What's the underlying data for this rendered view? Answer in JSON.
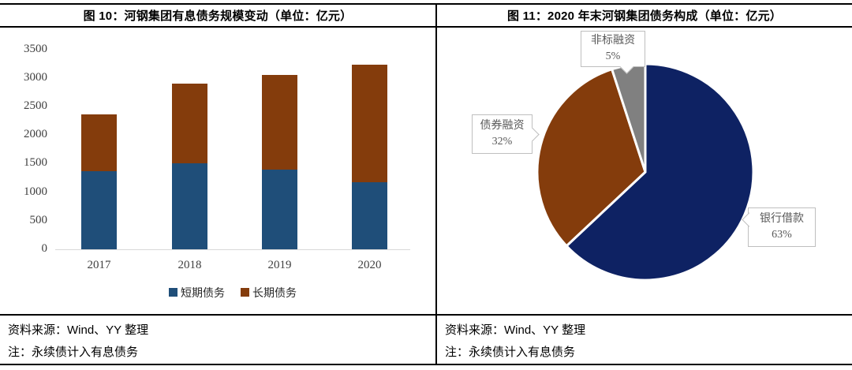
{
  "left_panel": {
    "source": "资料来源：Wind、YY 整理",
    "note": "注：永续债计入有息债务"
  },
  "right_panel": {
    "source": "资料来源：Wind、YY 整理",
    "note": "注：永续债计入有息债务"
  },
  "colors": {
    "short_term_blue": "#1F4E79",
    "long_term_brown": "#843C0C",
    "pie_navy": "#0E2263",
    "pie_brown": "#843C0C",
    "pie_gray": "#808080",
    "baseline_gray": "#D9D9D9",
    "axis_text": "#404040",
    "callout_border": "#BFBFBF",
    "callout_text": "#595959"
  },
  "chart_data": [
    {
      "type": "bar",
      "stacked": true,
      "title": "图 10：河钢集团有息债务规模变动（单位：亿元）",
      "categories": [
        "2017",
        "2018",
        "2019",
        "2020"
      ],
      "series": [
        {
          "name": "短期债务",
          "color": "#1F4E79",
          "values": [
            1370,
            1500,
            1390,
            1170
          ]
        },
        {
          "name": "长期债务",
          "color": "#843C0C",
          "values": [
            990,
            1410,
            1670,
            2060
          ]
        }
      ],
      "totals": [
        2360,
        2910,
        3060,
        3230
      ],
      "ylim": [
        0,
        3500
      ],
      "yticks": [
        0,
        500,
        1000,
        1500,
        2000,
        2500,
        3000,
        3500
      ],
      "grid": false,
      "legend_position": "bottom"
    },
    {
      "type": "pie",
      "title": "图 11：2020 年末河钢集团债务构成（单位：亿元）",
      "start_angle_deg": 0,
      "direction": "clockwise",
      "slices": [
        {
          "label": "银行借款",
          "pct": 63,
          "pct_label": "63%",
          "color": "#0E2263"
        },
        {
          "label": "债券融资",
          "pct": 32,
          "pct_label": "32%",
          "color": "#843C0C"
        },
        {
          "label": "非标融资",
          "pct": 5,
          "pct_label": "5%",
          "color": "#808080"
        }
      ]
    }
  ]
}
